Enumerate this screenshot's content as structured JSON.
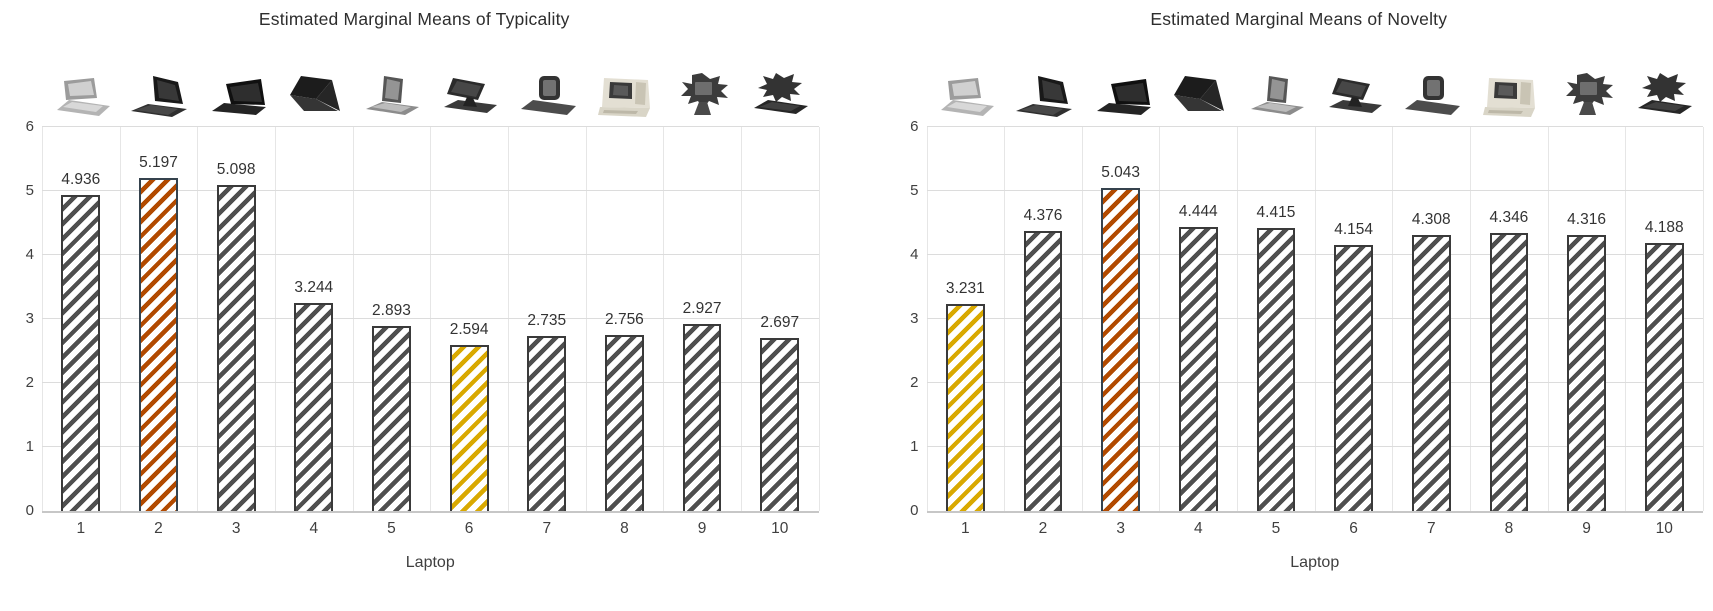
{
  "colors": {
    "hatch_gray": "#4f4f4f",
    "hatch_orange": "#b24a00",
    "hatch_yellow": "#d9a900",
    "bar_outline": "#3a3a3a",
    "grid_line": "#dcdcdc",
    "text": "#333333"
  },
  "chart_data": [
    {
      "type": "bar",
      "title": "Estimated Marginal Means of Typicality",
      "xlabel": "Laptop",
      "ylabel": "",
      "ylim": [
        0,
        6
      ],
      "yticks": [
        0,
        1,
        2,
        3,
        4,
        5,
        6
      ],
      "grid": true,
      "legend": "none",
      "bar_style": "diagonal-hatch",
      "categories": [
        "1",
        "2",
        "3",
        "4",
        "5",
        "6",
        "7",
        "8",
        "9",
        "10"
      ],
      "values": [
        4.936,
        5.197,
        5.098,
        3.244,
        2.893,
        2.594,
        2.735,
        2.756,
        2.927,
        2.697
      ],
      "data_labels": [
        "4.936",
        "5.197",
        "5.098",
        "3.244",
        "2.893",
        "2.594",
        "2.735",
        "2.756",
        "2.927",
        "2.697"
      ],
      "highlighted_bars": [
        {
          "category": "2",
          "color": "orange"
        },
        {
          "category": "6",
          "color": "yellow"
        }
      ],
      "icons": [
        "laptop-photo-1",
        "laptop-photo-2",
        "laptop-photo-3",
        "laptop-photo-4",
        "laptop-photo-5",
        "laptop-photo-6",
        "laptop-photo-7",
        "laptop-photo-8",
        "laptop-photo-9",
        "laptop-photo-10"
      ]
    },
    {
      "type": "bar",
      "title": "Estimated Marginal Means of Novelty",
      "xlabel": "Laptop",
      "ylabel": "",
      "ylim": [
        0,
        6
      ],
      "yticks": [
        0,
        1,
        2,
        3,
        4,
        5,
        6
      ],
      "grid": true,
      "legend": "none",
      "bar_style": "diagonal-hatch",
      "categories": [
        "1",
        "2",
        "3",
        "4",
        "5",
        "6",
        "7",
        "8",
        "9",
        "10"
      ],
      "values": [
        3.231,
        4.376,
        5.043,
        4.444,
        4.415,
        4.154,
        4.308,
        4.346,
        4.316,
        4.188
      ],
      "data_labels": [
        "3.231",
        "4.376",
        "5.043",
        "4.444",
        "4.415",
        "4.154",
        "4.308",
        "4.346",
        "4.316",
        "4.188"
      ],
      "highlighted_bars": [
        {
          "category": "1",
          "color": "yellow"
        },
        {
          "category": "3",
          "color": "orange"
        }
      ],
      "icons": [
        "laptop-photo-1",
        "laptop-photo-2",
        "laptop-photo-3",
        "laptop-photo-4",
        "laptop-photo-5",
        "laptop-photo-6",
        "laptop-photo-7",
        "laptop-photo-8",
        "laptop-photo-9",
        "laptop-photo-10"
      ]
    }
  ]
}
